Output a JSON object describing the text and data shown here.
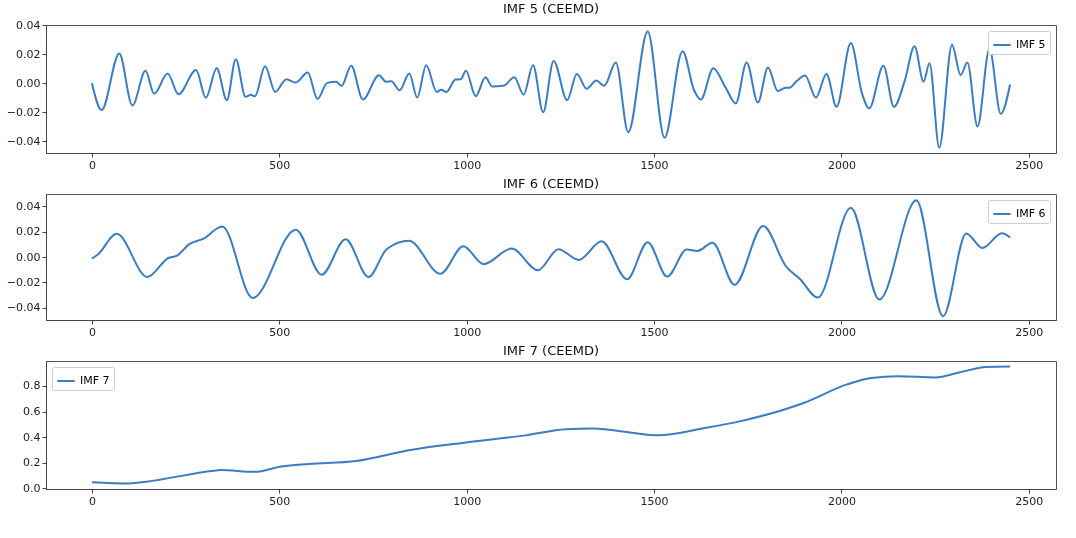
{
  "chart_data": [
    {
      "type": "line",
      "title": "IMF 5 (CEEMD)",
      "legend": "top right",
      "grid": false,
      "xlim": [
        -122.5,
        2572.5
      ],
      "ylim": [
        -0.048,
        0.04
      ],
      "xticks": [
        0,
        500,
        1000,
        1500,
        2000,
        2500
      ],
      "yticks": [
        {
          "value": -0.04,
          "label": "−0.04"
        },
        {
          "value": -0.02,
          "label": "−0.02"
        },
        {
          "value": 0,
          "label": "0.00"
        },
        {
          "value": 0.02,
          "label": "0.02"
        },
        {
          "value": 0.04,
          "label": "0.04"
        }
      ],
      "series": [
        {
          "name": "IMF 5",
          "color": "#3b7dc0",
          "x": [
            0,
            26,
            73,
            108,
            143,
            166,
            202,
            231,
            278,
            304,
            333,
            360,
            384,
            410,
            424,
            435,
            462,
            489,
            519,
            543,
            576,
            602,
            628,
            652,
            666,
            692,
            723,
            766,
            785,
            799,
            821,
            847,
            868,
            892,
            920,
            932,
            946,
            970,
            984,
            998,
            1024,
            1050,
            1068,
            1098,
            1127,
            1152,
            1177,
            1204,
            1232,
            1268,
            1294,
            1320,
            1346,
            1367,
            1398,
            1431,
            1483,
            1528,
            1576,
            1607,
            1625,
            1658,
            1691,
            1718,
            1747,
            1777,
            1804,
            1830,
            1851,
            1861,
            1880,
            1903,
            1932,
            1960,
            1987,
            2025,
            2055,
            2074,
            2112,
            2140,
            2169,
            2195,
            2219,
            2235,
            2261,
            2295,
            2318,
            2336,
            2363,
            2395,
            2425,
            2450
          ],
          "values": [
            0,
            -0.0184,
            0.0204,
            -0.0153,
            0.0085,
            -0.0072,
            0.0067,
            -0.0076,
            0.009,
            -0.01,
            0.0103,
            -0.0117,
            0.0164,
            -0.0094,
            -0.008,
            -0.009,
            0.0117,
            -0.006,
            0.0027,
            0.0004,
            0.0074,
            -0.0108,
            0.0002,
            0.0009,
            -0.0018,
            0.0119,
            -0.0112,
            0.0054,
            0.0009,
            0.0013,
            -0.0049,
            0.0067,
            -0.0099,
            0.0124,
            -0.006,
            -0.0045,
            -0.006,
            0.0025,
            0.0027,
            0.0085,
            -0.009,
            0.004,
            -0.0022,
            -0.0018,
            0.004,
            -0.0079,
            0.0124,
            -0.02,
            0.0153,
            -0.0117,
            0.0063,
            -0.0038,
            0.0018,
            -0.0018,
            0.0142,
            -0.0337,
            0.0355,
            -0.0375,
            0.022,
            -0.005,
            -0.0112,
            0.0103,
            -0.0031,
            -0.0139,
            0.0142,
            -0.0133,
            0.0108,
            -0.0054,
            -0.0031,
            -0.0031,
            0.0013,
            0.0052,
            -0.0099,
            0.0063,
            -0.0162,
            0.0276,
            -0.0072,
            -0.0173,
            0.0119,
            -0.0162,
            0.0018,
            0.0254,
            0.0011,
            0.0137,
            -0.0443,
            0.0265,
            0.0056,
            0.0142,
            -0.0297,
            0.0236,
            -0.0211,
            -0.0009
          ]
        }
      ]
    },
    {
      "type": "line",
      "title": "IMF 6 (CEEMD)",
      "legend": "top right",
      "grid": false,
      "xlim": [
        -122.5,
        2572.5
      ],
      "ylim": [
        -0.0495,
        0.0495
      ],
      "xticks": [
        0,
        500,
        1000,
        1500,
        2000,
        2500
      ],
      "yticks": [
        {
          "value": -0.04,
          "label": "−0.04"
        },
        {
          "value": -0.02,
          "label": "−0.02"
        },
        {
          "value": 0,
          "label": "0.00"
        },
        {
          "value": 0.02,
          "label": "0.02"
        },
        {
          "value": 0.04,
          "label": "0.04"
        }
      ],
      "series": [
        {
          "name": "IMF 6",
          "color": "#3b7dc0",
          "x": [
            0,
            16,
            66,
            148,
            204,
            227,
            260,
            298,
            348,
            429,
            544,
            613,
            677,
            738,
            787,
            846,
            930,
            991,
            1045,
            1120,
            1190,
            1245,
            1299,
            1360,
            1428,
            1483,
            1535,
            1587,
            1616,
            1656,
            1715,
            1791,
            1852,
            1890,
            1937,
            2025,
            2101,
            2200,
            2271,
            2333,
            2376,
            2428,
            2450
          ],
          "values": [
            -0.0013,
            0.002,
            0.0182,
            -0.0157,
            -0.0008,
            0.001,
            0.0101,
            0.0144,
            0.024,
            -0.0322,
            0.0215,
            -0.0139,
            0.0139,
            -0.0157,
            0.0063,
            0.0127,
            -0.0132,
            0.0084,
            -0.0056,
            0.0066,
            -0.0104,
            0.0061,
            -0.0023,
            0.0124,
            -0.0175,
            0.0116,
            -0.0154,
            0.0058,
            0.0048,
            0.0111,
            -0.0218,
            0.0243,
            -0.0073,
            -0.0175,
            -0.0319,
            0.0387,
            -0.0334,
            0.0446,
            -0.0466,
            0.0185,
            0.0071,
            0.0187,
            0.0154
          ]
        }
      ]
    },
    {
      "type": "line",
      "title": "IMF 7 (CEEMD)",
      "legend": "top left",
      "grid": false,
      "xlim": [
        -122.5,
        2572.5
      ],
      "ylim": [
        -0.005,
        0.995
      ],
      "xticks": [
        0,
        500,
        1000,
        1500,
        2000,
        2500
      ],
      "yticks": [
        {
          "value": 0,
          "label": "0.0"
        },
        0.2,
        0.4,
        0.6,
        0.8
      ],
      "series": [
        {
          "name": "IMF 7",
          "color": "#3b7dc0",
          "x": [
            0,
            99,
            145,
            325,
            343,
            434,
            506,
            579,
            705,
            850,
            994,
            1157,
            1266,
            1338,
            1447,
            1510,
            1628,
            1737,
            1899,
            2017,
            2079,
            2151,
            2251,
            2314,
            2386,
            2450
          ],
          "values": [
            0.048,
            0.038,
            0.052,
            0.138,
            0.143,
            0.129,
            0.171,
            0.19,
            0.214,
            0.3,
            0.357,
            0.414,
            0.462,
            0.467,
            0.433,
            0.414,
            0.467,
            0.529,
            0.667,
            0.814,
            0.862,
            0.876,
            0.867,
            0.905,
            0.948,
            0.952
          ]
        }
      ]
    }
  ]
}
